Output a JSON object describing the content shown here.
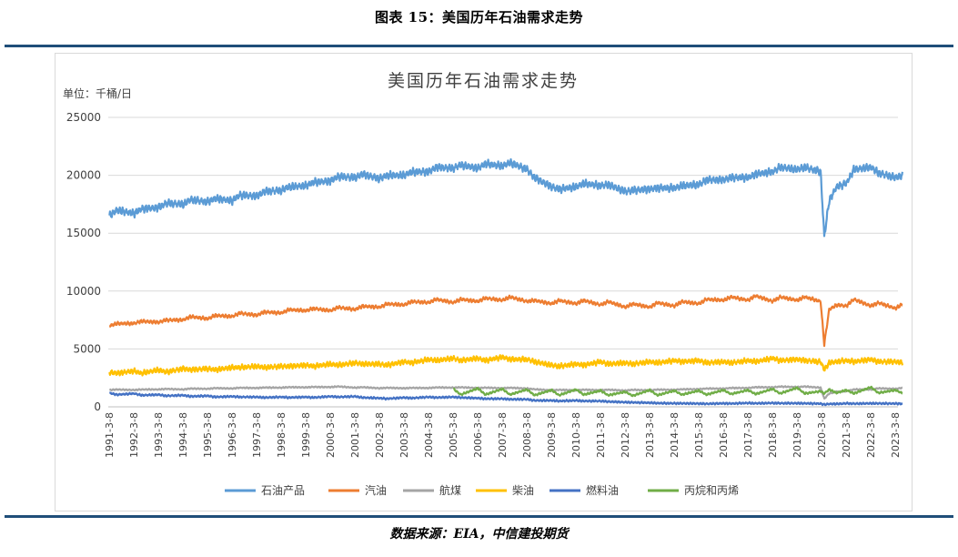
{
  "figure_title": "图表 15：美国历年石油需求走势",
  "source_note": "数据来源：EIA，中信建投期货",
  "chart_data": {
    "type": "line",
    "title": "美国历年石油需求走势",
    "unit_label": "单位：千桶/日",
    "xlabel": "",
    "ylabel": "",
    "ylim": [
      0,
      25000
    ],
    "yticks": [
      0,
      5000,
      10000,
      15000,
      20000,
      25000
    ],
    "x_tick_labels": [
      "1991-3-8",
      "1992-3-8",
      "1993-3-8",
      "1994-3-8",
      "1995-3-8",
      "1996-3-8",
      "1997-3-8",
      "1998-3-8",
      "1999-3-8",
      "2000-3-8",
      "2001-3-8",
      "2002-3-8",
      "2003-3-8",
      "2004-3-8",
      "2005-3-8",
      "2006-3-8",
      "2007-3-8",
      "2008-3-8",
      "2009-3-8",
      "2010-3-8",
      "2011-3-8",
      "2012-3-8",
      "2013-3-8",
      "2014-3-8",
      "2015-3-8",
      "2016-3-8",
      "2017-3-8",
      "2018-3-8",
      "2019-3-8",
      "2020-3-8",
      "2021-3-8",
      "2022-3-8",
      "2023-3-8"
    ],
    "grid": true,
    "legend_position": "bottom",
    "x": [
      1991.2,
      1991.5,
      1992.2,
      1992.5,
      1993.2,
      1993.5,
      1994.2,
      1994.5,
      1995.2,
      1995.5,
      1996.2,
      1996.5,
      1997.2,
      1997.5,
      1998.2,
      1998.5,
      1999.2,
      1999.5,
      2000.2,
      2000.5,
      2001.2,
      2001.5,
      2002.2,
      2002.5,
      2003.2,
      2003.5,
      2004.2,
      2004.5,
      2005.2,
      2005.5,
      2006.2,
      2006.5,
      2007.2,
      2007.5,
      2008.2,
      2008.5,
      2009.2,
      2009.5,
      2010.2,
      2010.5,
      2011.2,
      2011.5,
      2012.2,
      2012.5,
      2013.2,
      2013.5,
      2014.2,
      2014.5,
      2015.2,
      2015.5,
      2016.2,
      2016.5,
      2017.2,
      2017.5,
      2018.2,
      2018.5,
      2019.2,
      2019.5,
      2020.15,
      2020.3,
      2020.5,
      2020.8,
      2021.2,
      2021.5,
      2022.2,
      2022.5,
      2023.2,
      2023.5
    ],
    "series": [
      {
        "name": "石油产品",
        "color": "#5b9bd5",
        "values": [
          16500,
          17000,
          16700,
          17100,
          17200,
          17600,
          17500,
          17900,
          17700,
          18000,
          17800,
          18300,
          18200,
          18600,
          18700,
          19000,
          19100,
          19400,
          19500,
          19900,
          19800,
          20100,
          19700,
          20000,
          20000,
          20300,
          20300,
          20700,
          20600,
          20900,
          20600,
          21000,
          20800,
          21100,
          20500,
          19800,
          19000,
          18800,
          19000,
          19300,
          19100,
          19200,
          18600,
          18700,
          18800,
          18900,
          18900,
          19100,
          19200,
          19600,
          19600,
          19800,
          19800,
          20100,
          20300,
          20700,
          20500,
          20700,
          20300,
          14700,
          17800,
          19000,
          19300,
          20500,
          20700,
          20200,
          19800,
          20000
        ]
      },
      {
        "name": "汽油",
        "color": "#ed7d31",
        "values": [
          7000,
          7200,
          7200,
          7400,
          7300,
          7500,
          7500,
          7800,
          7600,
          7900,
          7800,
          8100,
          7900,
          8200,
          8100,
          8400,
          8300,
          8500,
          8300,
          8600,
          8400,
          8700,
          8600,
          8900,
          8800,
          9100,
          9000,
          9300,
          9000,
          9300,
          9100,
          9400,
          9200,
          9500,
          9100,
          9200,
          8900,
          9200,
          8900,
          9200,
          8800,
          9100,
          8600,
          8900,
          8600,
          9000,
          8700,
          9100,
          8900,
          9300,
          9200,
          9500,
          9200,
          9600,
          9100,
          9500,
          9200,
          9500,
          9100,
          5400,
          8400,
          8800,
          8700,
          9300,
          8700,
          9000,
          8500,
          8900
        ]
      },
      {
        "name": "航煤",
        "color": "#a5a5a5",
        "values": [
          1450,
          1500,
          1450,
          1500,
          1500,
          1550,
          1500,
          1580,
          1550,
          1620,
          1580,
          1650,
          1620,
          1670,
          1650,
          1700,
          1680,
          1720,
          1700,
          1760,
          1650,
          1700,
          1600,
          1650,
          1600,
          1640,
          1620,
          1680,
          1650,
          1690,
          1620,
          1660,
          1600,
          1650,
          1580,
          1520,
          1420,
          1470,
          1420,
          1480,
          1430,
          1480,
          1400,
          1470,
          1420,
          1490,
          1460,
          1520,
          1520,
          1580,
          1570,
          1630,
          1620,
          1700,
          1680,
          1750,
          1700,
          1760,
          1650,
          700,
          1150,
          1300,
          1350,
          1500,
          1500,
          1600,
          1550,
          1650
        ]
      },
      {
        "name": "柴油",
        "color": "#ffc000",
        "values": [
          3000,
          2900,
          3100,
          2900,
          3200,
          3000,
          3300,
          3200,
          3300,
          3200,
          3400,
          3400,
          3500,
          3400,
          3500,
          3500,
          3600,
          3500,
          3700,
          3600,
          3800,
          3700,
          3700,
          3600,
          3900,
          3800,
          4100,
          4000,
          4200,
          4000,
          4200,
          4000,
          4300,
          4100,
          4100,
          3900,
          3600,
          3500,
          3700,
          3600,
          3900,
          3700,
          3800,
          3700,
          3900,
          3800,
          4000,
          3900,
          4000,
          3800,
          3900,
          3800,
          4000,
          3900,
          4200,
          4000,
          4100,
          4000,
          3900,
          3200,
          3800,
          3900,
          4000,
          3900,
          4100,
          3900,
          3900,
          3800
        ]
      },
      {
        "name": "燃料油",
        "color": "#4472c4",
        "values": [
          1200,
          1050,
          1150,
          1000,
          1050,
          950,
          1000,
          900,
          950,
          850,
          900,
          850,
          850,
          800,
          850,
          800,
          850,
          800,
          900,
          850,
          900,
          800,
          750,
          700,
          800,
          750,
          850,
          800,
          850,
          800,
          750,
          700,
          700,
          650,
          650,
          550,
          550,
          500,
          550,
          500,
          500,
          450,
          400,
          380,
          350,
          320,
          300,
          300,
          280,
          260,
          300,
          280,
          330,
          300,
          330,
          310,
          310,
          300,
          270,
          200,
          250,
          250,
          300,
          270,
          300,
          290,
          280,
          260
        ]
      },
      {
        "name": "丙烷和丙烯",
        "color": "#70ad47",
        "values": [
          null,
          null,
          null,
          null,
          null,
          null,
          null,
          null,
          null,
          null,
          null,
          null,
          null,
          null,
          null,
          null,
          null,
          null,
          null,
          null,
          null,
          null,
          null,
          null,
          null,
          null,
          null,
          null,
          1550,
          1050,
          1600,
          1050,
          1550,
          1050,
          1500,
          1000,
          1450,
          1000,
          1500,
          1050,
          1400,
          1000,
          1300,
          950,
          1450,
          1000,
          1400,
          1050,
          1400,
          1050,
          1450,
          1100,
          1450,
          1100,
          1550,
          1150,
          1650,
          1150,
          1350,
          1150,
          1500,
          1200,
          1450,
          1150,
          1700,
          1200,
          1450,
          1150
        ]
      }
    ]
  }
}
